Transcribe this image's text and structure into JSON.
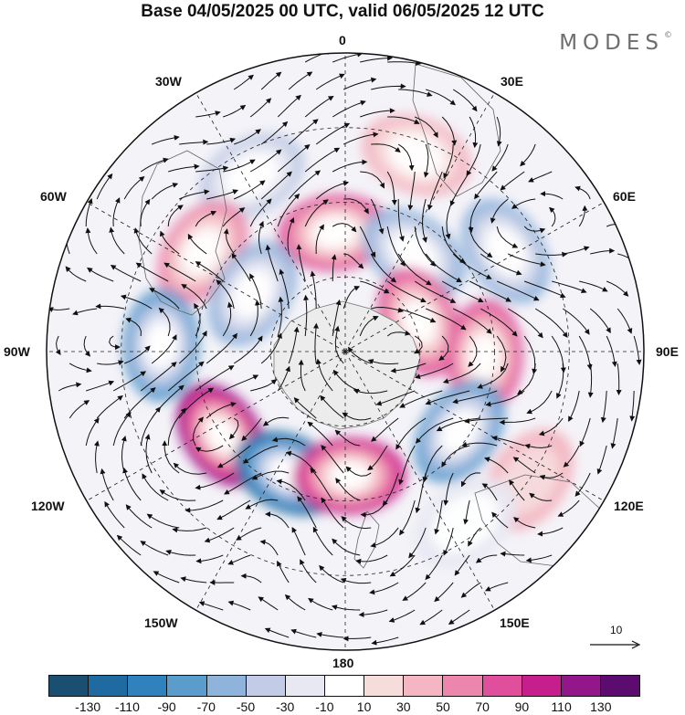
{
  "title": "Base 04/05/2025 00 UTC, valid 06/05/2025 12 UTC",
  "brand": {
    "name": "MODES",
    "mark": "©"
  },
  "longitude_labels": {
    "n": "0",
    "nne": "30E",
    "ene": "60E",
    "e": "90E",
    "ese": "120E",
    "sse": "150E",
    "s": "180",
    "ssw": "150W",
    "wsw": "120W",
    "w": "90W",
    "wnw": "60W",
    "nnw": "30W"
  },
  "reference_vector": {
    "label": "10",
    "icon": "arrow-right-icon"
  },
  "colorbar": {
    "colors": [
      "#1b4f72",
      "#1f6aa0",
      "#2f82bd",
      "#5a9ccc",
      "#8fb4dc",
      "#c2cce6",
      "#e7e8f2",
      "#ffffff",
      "#f7dcdc",
      "#f3b6c2",
      "#ec86ad",
      "#df4f9c",
      "#c61e8c",
      "#93178a",
      "#5b0c6e"
    ],
    "tick_labels": [
      "-130",
      "-110",
      "-90",
      "-70",
      "-50",
      "-30",
      "-10",
      "10",
      "30",
      "50",
      "70",
      "90",
      "110",
      "130"
    ]
  },
  "anomaly_centers": [
    {
      "lon": -28,
      "colat": 40,
      "value": -35
    },
    {
      "lon": 20,
      "colat": 42,
      "value": 40
    },
    {
      "lon": -55,
      "colat": 35,
      "value": 60
    },
    {
      "lon": -5,
      "colat": 24,
      "value": 85
    },
    {
      "lon": 35,
      "colat": 24,
      "value": -70
    },
    {
      "lon": 58,
      "colat": 38,
      "value": -65
    },
    {
      "lon": -58,
      "colat": 22,
      "value": -55
    },
    {
      "lon": -88,
      "colat": 37,
      "value": -80
    },
    {
      "lon": 68,
      "colat": 16,
      "value": 75
    },
    {
      "lon": 92,
      "colat": 28,
      "value": 85
    },
    {
      "lon": 125,
      "colat": 28,
      "value": -85
    },
    {
      "lon": -124,
      "colat": 30,
      "value": 120
    },
    {
      "lon": -155,
      "colat": 27,
      "value": -130
    },
    {
      "lon": 178,
      "colat": 25,
      "value": 105
    },
    {
      "lon": 125,
      "colat": 45,
      "value": 30
    },
    {
      "lon": 145,
      "colat": 42,
      "value": -20
    }
  ]
}
